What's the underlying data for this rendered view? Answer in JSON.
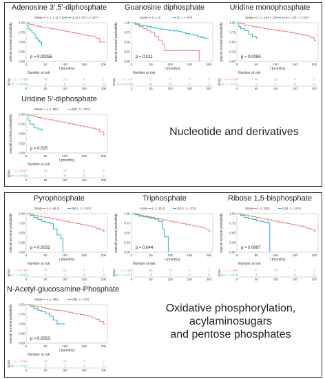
{
  "sections": [
    {
      "label_lines": [
        "Nucleotide and derivatives"
      ]
    },
    {
      "label_lines": [
        "Oxidative phosphorylation, acylaminosugars",
        "and pentose phosphates"
      ]
    }
  ],
  "common": {
    "ylabel": "overall survival probability",
    "xlabel": "t [months]",
    "strata_title": "Strata",
    "strata_axis": "Strata",
    "risk_title": "Number at risk",
    "colors": {
      "group1": "#f08080",
      "group2": "#20b2c8"
    }
  },
  "chart_data": [
    {
      "type": "line",
      "title": "Adenosine 3',5'-diphosphate",
      "legend": [
        "(-.1, 1.11 × 10⁶]",
        "(1.11 × 10⁶, 1 × 10¹⁰]"
      ],
      "pvalue": "p = 0.00056",
      "xticks": [
        "0",
        "50",
        "100",
        "150",
        "200"
      ],
      "yticks": [
        "0.00",
        "0.25",
        "0.50",
        "0.75",
        "1.00"
      ],
      "xlim": [
        0,
        210
      ],
      "ylim": [
        0,
        1
      ],
      "series": [
        {
          "x": [
            0,
            5,
            10,
            20,
            30,
            40,
            50,
            60,
            70,
            80,
            90,
            100,
            110,
            120,
            130,
            140,
            150,
            160,
            170,
            180,
            190,
            200,
            205
          ],
          "y": [
            1,
            0.98,
            0.95,
            0.92,
            0.9,
            0.88,
            0.87,
            0.85,
            0.84,
            0.82,
            0.8,
            0.78,
            0.76,
            0.74,
            0.72,
            0.7,
            0.68,
            0.66,
            0.65,
            0.6,
            0.5,
            0.5,
            0.5
          ]
        },
        {
          "x": [
            0,
            5,
            10,
            15,
            20,
            25,
            30,
            35,
            40
          ],
          "y": [
            1,
            0.85,
            0.8,
            0.75,
            0.7,
            0.6,
            0.55,
            0.5,
            0.4
          ]
        }
      ],
      "risk": [
        [
          "96",
          "49",
          "19",
          "4",
          "2"
        ],
        [
          "4",
          "0",
          "0",
          "0",
          "0"
        ]
      ]
    },
    {
      "type": "line",
      "title": "Guanosine diphosphate",
      "legend": [
        "(-.1, 0]",
        "(0, 1 × 10¹⁰]"
      ],
      "pvalue": "p = 0.011",
      "xticks": [
        "0",
        "50",
        "100",
        "150",
        "200"
      ],
      "yticks": [
        "0.00",
        "0.25",
        "0.50",
        "0.75",
        "1.00"
      ],
      "xlim": [
        0,
        210
      ],
      "ylim": [
        0,
        1
      ],
      "series": [
        {
          "x": [
            0,
            10,
            20,
            30,
            40,
            50,
            60,
            70,
            80,
            85,
            90,
            100,
            120,
            140,
            160,
            170,
            175
          ],
          "y": [
            1,
            0.95,
            0.9,
            0.85,
            0.8,
            0.75,
            0.65,
            0.55,
            0.45,
            0.28,
            0.28,
            0.28,
            0.28,
            0.28,
            0.28,
            0.28,
            0
          ]
        },
        {
          "x": [
            0,
            10,
            20,
            30,
            40,
            50,
            60,
            70,
            80,
            90,
            100,
            110,
            120,
            130,
            140,
            150,
            160,
            170,
            180,
            190,
            200
          ],
          "y": [
            1,
            0.97,
            0.94,
            0.92,
            0.9,
            0.88,
            0.86,
            0.84,
            0.83,
            0.82,
            0.8,
            0.79,
            0.78,
            0.75,
            0.72,
            0.7,
            0.68,
            0.65,
            0.62,
            0.6,
            0.6
          ]
        }
      ],
      "risk": [
        [
          "8",
          "2",
          "0",
          "0",
          "0"
        ],
        [
          "92",
          "47",
          "19",
          "4",
          "2"
        ]
      ]
    },
    {
      "type": "line",
      "title": "Uridine monophosphate",
      "legend": [
        "(-.1, 4.94 × 10⁵]",
        "(4.94 × 10⁵, 1 × 10¹⁰]"
      ],
      "pvalue": "p = 0.0086",
      "xticks": [
        "0",
        "50",
        "100",
        "150",
        "200"
      ],
      "yticks": [
        "0.00",
        "0.25",
        "0.50",
        "0.75",
        "1.00"
      ],
      "xlim": [
        0,
        210
      ],
      "ylim": [
        0,
        1
      ],
      "series": [
        {
          "x": [
            0,
            10,
            20,
            30,
            40,
            50,
            60,
            70,
            80,
            90,
            100,
            110,
            120,
            130,
            140,
            150,
            160,
            170,
            180,
            190,
            200,
            205
          ],
          "y": [
            1,
            0.97,
            0.94,
            0.92,
            0.9,
            0.89,
            0.87,
            0.85,
            0.83,
            0.82,
            0.8,
            0.79,
            0.78,
            0.76,
            0.74,
            0.72,
            0.7,
            0.68,
            0.66,
            0.62,
            0.55,
            0.55
          ]
        },
        {
          "x": [
            0,
            5,
            10,
            20,
            30,
            40,
            50,
            55
          ],
          "y": [
            1,
            0.9,
            0.85,
            0.8,
            0.7,
            0.65,
            0.6,
            0.6
          ]
        }
      ],
      "risk": [
        [
          "97",
          "48",
          "19",
          "4",
          "2"
        ],
        [
          "3",
          "1",
          "0",
          "0",
          "0"
        ]
      ]
    },
    {
      "type": "line",
      "title": "Uridine 5'-diphosphate",
      "legend": [
        "(-.1, 567]",
        "(567, 1 × 10¹⁰]"
      ],
      "pvalue": "p = 0.025",
      "xticks": [
        "0",
        "50",
        "100",
        "150",
        "200"
      ],
      "yticks": [
        "0.00",
        "0.25",
        "0.50",
        "0.75",
        "1.00"
      ],
      "xlim": [
        0,
        210
      ],
      "ylim": [
        0,
        1
      ],
      "series": [
        {
          "x": [
            0,
            10,
            20,
            30,
            40,
            50,
            60,
            70,
            80,
            90,
            100,
            110,
            120,
            130,
            140,
            150,
            160,
            170,
            180,
            190,
            200,
            205
          ],
          "y": [
            1,
            0.97,
            0.95,
            0.92,
            0.9,
            0.88,
            0.86,
            0.84,
            0.82,
            0.8,
            0.78,
            0.76,
            0.74,
            0.72,
            0.7,
            0.68,
            0.66,
            0.64,
            0.62,
            0.55,
            0.48,
            0.48
          ]
        },
        {
          "x": [
            0,
            5,
            10,
            20,
            30,
            40,
            45
          ],
          "y": [
            1,
            0.85,
            0.75,
            0.65,
            0.62,
            0.6,
            0.6
          ]
        }
      ],
      "risk": [
        [
          "97",
          "48",
          "19",
          "4",
          "2"
        ],
        [
          "3",
          "1",
          "0",
          "0",
          "0"
        ]
      ]
    },
    {
      "type": "line",
      "title": "Pyrophosphate",
      "legend": [
        "(-.1, 84.1]",
        "(84.1, 1 × 10¹⁰]"
      ],
      "pvalue": "p = 0.0031",
      "xticks": [
        "0",
        "50",
        "100",
        "150",
        "200"
      ],
      "yticks": [
        "0.00",
        "0.25",
        "0.50",
        "0.75",
        "1.00"
      ],
      "xlim": [
        0,
        210
      ],
      "ylim": [
        0,
        1
      ],
      "series": [
        {
          "x": [
            0,
            10,
            20,
            30,
            40,
            50,
            60,
            70,
            80,
            90,
            100,
            110,
            120,
            130,
            140,
            150,
            160,
            170,
            180,
            190,
            200,
            205
          ],
          "y": [
            1,
            0.98,
            0.95,
            0.93,
            0.91,
            0.9,
            0.88,
            0.86,
            0.84,
            0.82,
            0.8,
            0.78,
            0.76,
            0.74,
            0.72,
            0.7,
            0.68,
            0.66,
            0.62,
            0.58,
            0.55,
            0.55
          ]
        },
        {
          "x": [
            0,
            10,
            20,
            30,
            40,
            50,
            60,
            70,
            80,
            90,
            95,
            95
          ],
          "y": [
            1,
            0.95,
            0.9,
            0.85,
            0.8,
            0.78,
            0.75,
            0.6,
            0.45,
            0.35,
            0.35,
            0
          ]
        }
      ],
      "risk": [
        [
          "88",
          "45",
          "18",
          "4",
          "2"
        ],
        [
          "12",
          "4",
          "1",
          "0",
          "0"
        ]
      ]
    },
    {
      "type": "line",
      "title": "Triphosphate",
      "legend": [
        "(-.1, 33.8]",
        "(33.8, 1 × 10¹⁰]"
      ],
      "pvalue": "p = 0.044",
      "xticks": [
        "0",
        "50",
        "100",
        "150",
        "200"
      ],
      "yticks": [
        "0.00",
        "0.25",
        "0.50",
        "0.75",
        "1.00"
      ],
      "xlim": [
        0,
        210
      ],
      "ylim": [
        0,
        1
      ],
      "series": [
        {
          "x": [
            0,
            10,
            20,
            30,
            40,
            50,
            60,
            70,
            80,
            90,
            100,
            110,
            120,
            130,
            140,
            150,
            160,
            170,
            180,
            190,
            200,
            205
          ],
          "y": [
            1,
            0.98,
            0.96,
            0.94,
            0.92,
            0.9,
            0.88,
            0.86,
            0.84,
            0.82,
            0.8,
            0.78,
            0.76,
            0.74,
            0.72,
            0.7,
            0.68,
            0.66,
            0.64,
            0.6,
            0.55,
            0.55
          ]
        },
        {
          "x": [
            0,
            10,
            20,
            30,
            40,
            50,
            60,
            70,
            80,
            85,
            95,
            95
          ],
          "y": [
            1,
            0.97,
            0.94,
            0.92,
            0.9,
            0.88,
            0.86,
            0.8,
            0.6,
            0.4,
            0.4,
            0
          ]
        }
      ],
      "risk": [
        [
          "91",
          "46",
          "18",
          "4",
          "2"
        ],
        [
          "9",
          "3",
          "1",
          "0",
          "0"
        ]
      ]
    },
    {
      "type": "line",
      "title": "Ribose 1,5-bisphosphate",
      "legend": [
        "(-.1, 153]",
        "(153, 1 × 10¹⁰]"
      ],
      "pvalue": "p = 0.0097",
      "xticks": [
        "0",
        "50",
        "100",
        "150",
        "200"
      ],
      "yticks": [
        "0.00",
        "0.25",
        "0.50",
        "0.75",
        "1.00"
      ],
      "xlim": [
        0,
        210
      ],
      "ylim": [
        0,
        1
      ],
      "series": [
        {
          "x": [
            0,
            10,
            20,
            30,
            40,
            50,
            60,
            70,
            80,
            90,
            100,
            110,
            120,
            130,
            140,
            150,
            160,
            170,
            180,
            190,
            200,
            205
          ],
          "y": [
            1,
            0.98,
            0.96,
            0.94,
            0.92,
            0.9,
            0.88,
            0.86,
            0.84,
            0.82,
            0.8,
            0.78,
            0.76,
            0.74,
            0.72,
            0.7,
            0.68,
            0.66,
            0.62,
            0.58,
            0.55,
            0.55
          ]
        },
        {
          "x": [
            0,
            10,
            20,
            30,
            40,
            50,
            60,
            70,
            80,
            85,
            85
          ],
          "y": [
            1,
            0.95,
            0.9,
            0.87,
            0.85,
            0.82,
            0.8,
            0.78,
            0.76,
            0.76,
            0
          ]
        }
      ],
      "risk": [
        [
          "94",
          "47",
          "18",
          "4",
          "2"
        ],
        [
          "6",
          "2",
          "1",
          "0",
          "0"
        ]
      ]
    },
    {
      "type": "line",
      "title": "N-Acetyl-glucosamine-Phosphate",
      "legend": [
        "(-.1, 265]",
        "(265, 1 × 10⁶]"
      ],
      "pvalue": "p = 0.0053",
      "xticks": [
        "0",
        "50",
        "100",
        "150",
        "200"
      ],
      "yticks": [
        "0.00",
        "0.25",
        "0.50",
        "0.75",
        "1.00"
      ],
      "xlim": [
        0,
        210
      ],
      "ylim": [
        0,
        1
      ],
      "series": [
        {
          "x": [
            0,
            10,
            20,
            30,
            40,
            50,
            60,
            70,
            80,
            90,
            100,
            110,
            120,
            130,
            140,
            150,
            160,
            170,
            180,
            190,
            200,
            205
          ],
          "y": [
            1,
            0.98,
            0.96,
            0.94,
            0.92,
            0.9,
            0.88,
            0.86,
            0.85,
            0.84,
            0.82,
            0.8,
            0.78,
            0.76,
            0.74,
            0.72,
            0.7,
            0.66,
            0.62,
            0.56,
            0.5,
            0.5
          ]
        },
        {
          "x": [
            0,
            10,
            20,
            30,
            40,
            50,
            60,
            70,
            80,
            90,
            100
          ],
          "y": [
            1,
            0.95,
            0.9,
            0.85,
            0.82,
            0.78,
            0.7,
            0.6,
            0.5,
            0.5,
            0.5
          ]
        }
      ],
      "risk": [
        [
          "94",
          "44",
          "18",
          "3",
          "2"
        ],
        [
          "6",
          "3",
          "1",
          "1",
          "0"
        ]
      ]
    }
  ]
}
